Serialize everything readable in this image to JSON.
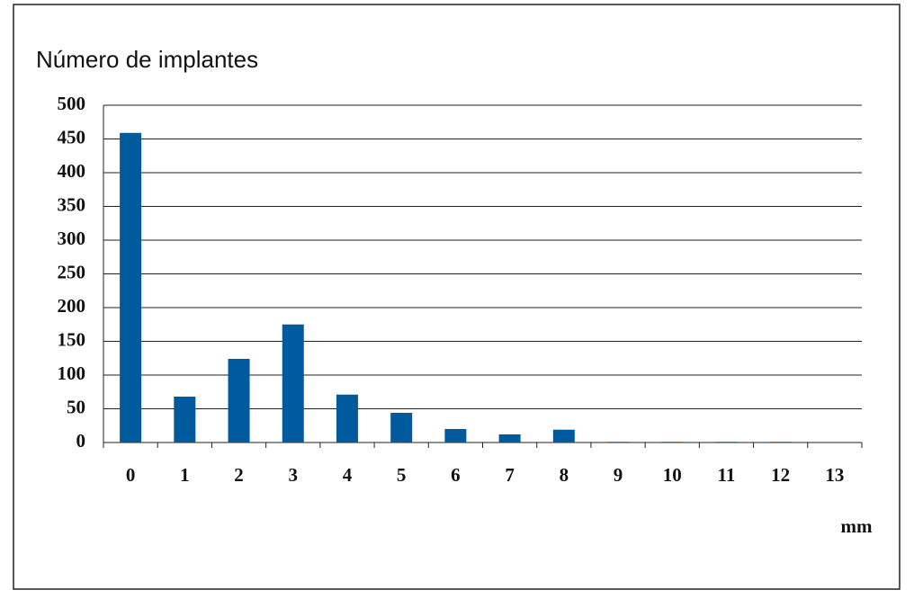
{
  "chart_data": {
    "type": "bar",
    "title": "Número de implantes",
    "x_label": "mm",
    "categories": [
      "0",
      "1",
      "2",
      "3",
      "4",
      "5",
      "6",
      "7",
      "8",
      "9",
      "10",
      "11",
      "12",
      "13"
    ],
    "values": [
      459,
      68,
      124,
      175,
      71,
      44,
      20,
      12,
      19,
      1,
      1,
      1,
      1,
      0
    ],
    "color": "#005a9e",
    "ylim": [
      0,
      500
    ],
    "yticks": [
      0,
      50,
      100,
      150,
      200,
      250,
      300,
      350,
      400,
      450,
      500
    ],
    "grid": true
  }
}
